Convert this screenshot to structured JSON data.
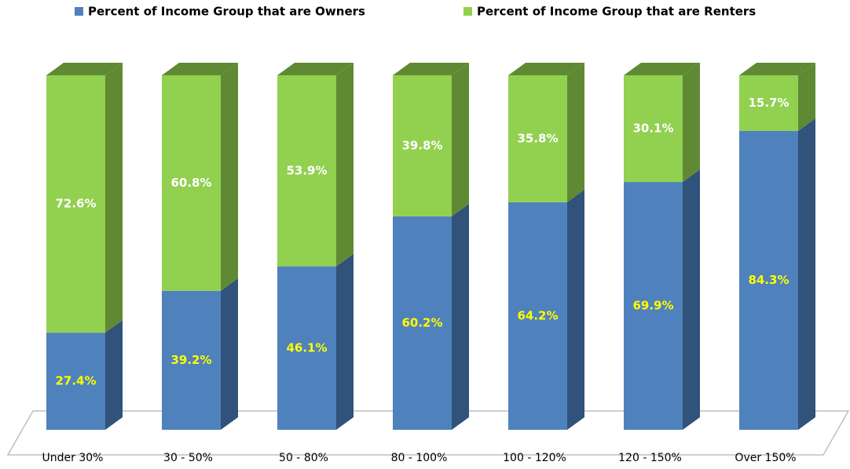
{
  "chart_data": {
    "type": "bar",
    "stacked": true,
    "categories": [
      "Under 30%",
      "30 - 50%",
      "50 - 80%",
      "80 - 100%",
      "100 - 120%",
      "120 - 150%",
      "Over 150%"
    ],
    "series": [
      {
        "name": "Percent of Income Group that are Owners",
        "color": "#4f81bd",
        "side_color": "#31527a",
        "label_color": "#ffff00",
        "values": [
          27.4,
          39.2,
          46.1,
          60.2,
          64.2,
          69.9,
          84.3
        ],
        "value_labels": [
          "27.4%",
          "39.2%",
          "46.1%",
          "60.2%",
          "64.2%",
          "69.9%",
          "84.3%"
        ]
      },
      {
        "name": "Percent of Income Group that are Renters",
        "color": "#92d050",
        "side_color": "#5f8a33",
        "label_color": "#ffffff",
        "values": [
          72.6,
          60.8,
          53.9,
          39.8,
          35.8,
          30.1,
          15.7
        ],
        "value_labels": [
          "72.6%",
          "60.8%",
          "53.9%",
          "39.8%",
          "35.8%",
          "30.1%",
          "15.7%"
        ]
      }
    ],
    "legend": "top"
  }
}
